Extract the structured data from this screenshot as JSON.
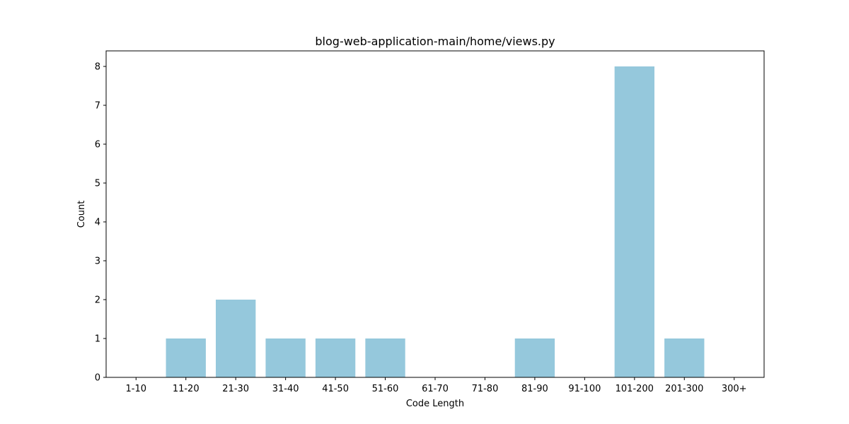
{
  "chart_data": {
    "type": "bar",
    "title": "blog-web-application-main/home/views.py",
    "xlabel": "Code Length",
    "ylabel": "Count",
    "categories": [
      "1-10",
      "11-20",
      "21-30",
      "31-40",
      "41-50",
      "51-60",
      "61-70",
      "71-80",
      "81-90",
      "91-100",
      "101-200",
      "201-300",
      "300+"
    ],
    "values": [
      0,
      1,
      2,
      1,
      1,
      1,
      0,
      0,
      1,
      0,
      8,
      1,
      0
    ],
    "ylim": [
      0,
      8.4
    ],
    "yticks": [
      0,
      1,
      2,
      3,
      4,
      5,
      6,
      7,
      8
    ],
    "grid": false,
    "legend": "none",
    "bar_color": "#95c8dc"
  }
}
